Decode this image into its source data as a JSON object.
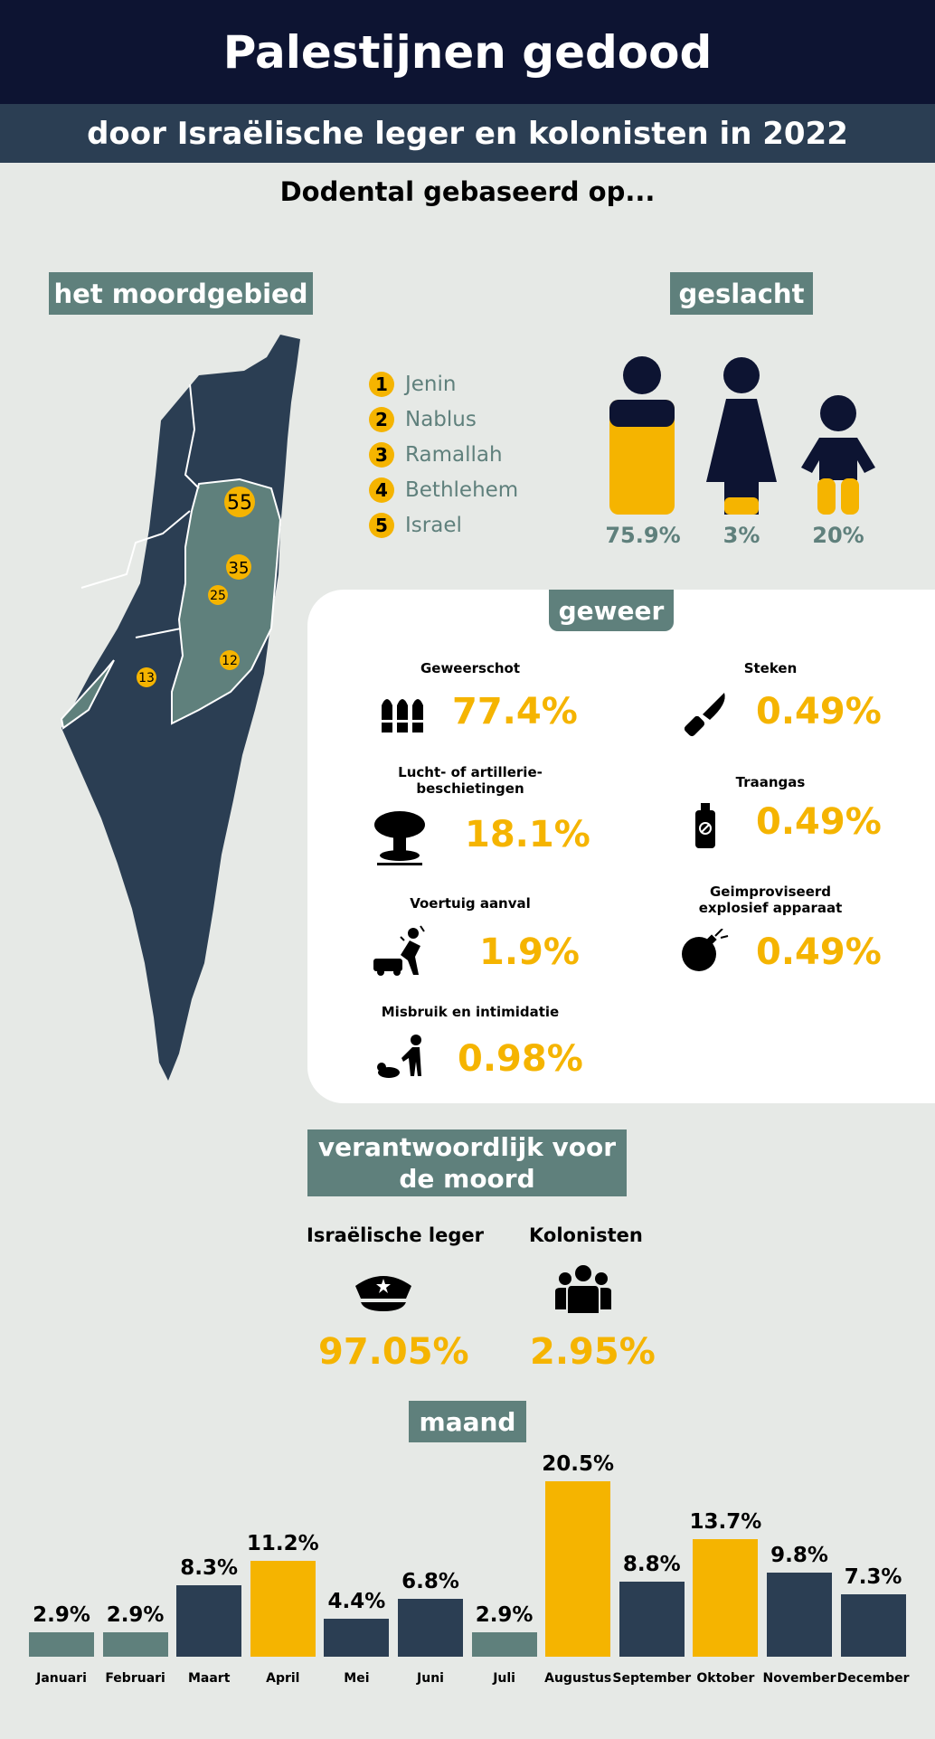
{
  "header": {
    "title": "Palestijnen gedood",
    "subtitle": "door Israëlische leger en kolonisten in 2022",
    "intro": "Dodental gebaseerd op..."
  },
  "region": {
    "tag": "het moordgebied",
    "legend": [
      {
        "num": "1",
        "label": "Jenin"
      },
      {
        "num": "2",
        "label": "Nablus"
      },
      {
        "num": "3",
        "label": "Ramallah"
      },
      {
        "num": "4",
        "label": "Bethlehem"
      },
      {
        "num": "5",
        "label": "Israel"
      }
    ],
    "map_markers": [
      "55",
      "35",
      "25",
      "12",
      "13"
    ]
  },
  "gender": {
    "tag": "geslacht",
    "items": [
      {
        "icon": "man-icon",
        "pct": "75.9%",
        "fill": 0.759
      },
      {
        "icon": "woman-icon",
        "pct": "3%",
        "fill": 0.03
      },
      {
        "icon": "child-icon",
        "pct": "20%",
        "fill": 0.2
      }
    ]
  },
  "weapons": {
    "tag": "geweer",
    "items": [
      {
        "icon": "bullets-icon",
        "label": "Geweerschot",
        "pct": "77.4%"
      },
      {
        "icon": "knife-icon",
        "label": "Steken",
        "pct": "0.49%"
      },
      {
        "icon": "explosion-icon",
        "label_line1": "Lucht- of artillerie-",
        "label_line2": "beschietingen",
        "pct": "18.1%"
      },
      {
        "icon": "tear-gas-icon",
        "label": "Traangas",
        "pct": "0.49%"
      },
      {
        "icon": "vehicle-attack-icon",
        "label": "Voertuig aanval",
        "pct": "1.9%"
      },
      {
        "icon": "bomb-icon",
        "label_line1": "Geimproviseerd",
        "label_line2": "explosief apparaat",
        "pct": "0.49%"
      },
      {
        "icon": "abuse-icon",
        "label": "Misbruik en intimidatie",
        "pct": "0.98%"
      }
    ]
  },
  "responsible": {
    "tag_line1": "verantwoordlijk voor",
    "tag_line2": "de moord",
    "items": [
      {
        "icon": "police-cap-icon",
        "label": "Israëlische leger",
        "pct": "97.05%"
      },
      {
        "icon": "group-icon",
        "label": "Kolonisten",
        "pct": "2.95%"
      }
    ]
  },
  "month": {
    "tag": "maand"
  },
  "colors": {
    "dark": "#2b3e53",
    "teal": "#5f807c",
    "yellow": "#f5b400",
    "navy": "#0d1432"
  },
  "chart_data": {
    "type": "bar",
    "categories": [
      "Januari",
      "Februari",
      "Maart",
      "April",
      "Mei",
      "Juni",
      "Juli",
      "Augustus",
      "September",
      "Oktober",
      "November",
      "December"
    ],
    "values": [
      2.9,
      2.9,
      8.3,
      11.2,
      4.4,
      6.8,
      2.9,
      20.5,
      8.8,
      13.7,
      9.8,
      7.3
    ],
    "data_labels": [
      "2.9%",
      "2.9%",
      "8.3%",
      "11.2%",
      "4.4%",
      "6.8%",
      "2.9%",
      "20.5%",
      "8.8%",
      "13.7%",
      "9.8%",
      "7.3%"
    ],
    "bar_colors": [
      "#5f807c",
      "#5f807c",
      "#2b3e53",
      "#f5b400",
      "#2b3e53",
      "#2b3e53",
      "#5f807c",
      "#f5b400",
      "#2b3e53",
      "#f5b400",
      "#2b3e53",
      "#2b3e53"
    ],
    "title": "maand",
    "xlabel": "",
    "ylabel": "",
    "ylim": [
      0,
      20.5
    ],
    "grid": false
  }
}
